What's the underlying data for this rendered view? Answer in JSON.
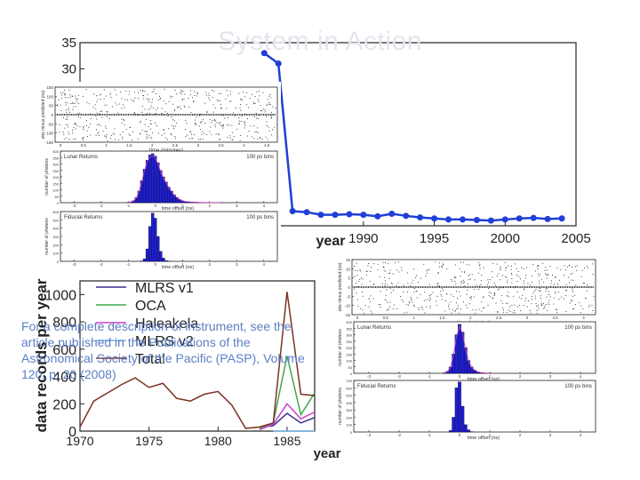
{
  "slide": {
    "title": "System in Action",
    "caption": "For a complete description of instrument, see the article published in the Publications of the Astronomical Society of the Pacific (PASP), Volume 120, p. 20 (2008)"
  },
  "chart_data": [
    {
      "id": "precision",
      "type": "line",
      "x": [
        1983,
        1984,
        1985,
        1986,
        1987,
        1988,
        1989,
        1990,
        1991,
        1992,
        1993,
        1994,
        1995,
        1996,
        1997,
        1998,
        1999,
        2000,
        2001,
        2002,
        2003,
        2004
      ],
      "y": [
        33,
        31,
        2.8,
        2.6,
        2.1,
        2.1,
        2.2,
        2.1,
        1.8,
        2.3,
        1.9,
        1.6,
        1.4,
        1.2,
        1.2,
        1.1,
        1.0,
        1.2,
        1.4,
        1.5,
        1.3,
        1.4
      ],
      "xlim": [
        1970,
        2005
      ],
      "ylim": [
        0,
        35
      ],
      "xticks": [
        1990,
        1995,
        2000,
        2005
      ],
      "yticks": [
        35,
        30
      ],
      "xlabel": "year",
      "color": "#1f3fd6"
    },
    {
      "id": "records",
      "type": "line",
      "xlim": [
        1970,
        1987
      ],
      "ylim": [
        0,
        1100
      ],
      "xticks": [
        1970,
        1975,
        1980,
        1985
      ],
      "yticks": [
        0,
        200,
        400,
        600,
        800,
        1000
      ],
      "xlabel": "year",
      "ylabel": "data records per year",
      "legend_position": "top-right",
      "series": [
        {
          "name": "MLRS v1",
          "color": "#3b2f8f",
          "x": [
            1983,
            1984,
            1985,
            1986,
            1987
          ],
          "y": [
            30,
            40,
            130,
            60,
            100
          ]
        },
        {
          "name": "OCA",
          "color": "#3fa84a",
          "x": [
            1983,
            1984,
            1985,
            1986,
            1987
          ],
          "y": [
            20,
            60,
            550,
            120,
            280
          ]
        },
        {
          "name": "Haleakela",
          "color": "#cc3fcc",
          "x": [
            1983,
            1984,
            1985,
            1986,
            1987
          ],
          "y": [
            10,
            50,
            200,
            90,
            140
          ]
        },
        {
          "name": "MLRS v2",
          "color": "#6fb0e0",
          "x": [
            1984,
            1985,
            1986,
            1987
          ],
          "y": [
            0,
            0,
            0,
            0
          ]
        },
        {
          "name": "Total",
          "color": "#7a3322",
          "x": [
            1970,
            1971,
            1972,
            1973,
            1974,
            1975,
            1976,
            1977,
            1978,
            1979,
            1980,
            1981,
            1982,
            1983,
            1984,
            1985,
            1986,
            1987
          ],
          "y": [
            30,
            220,
            280,
            340,
            390,
            320,
            350,
            240,
            220,
            270,
            290,
            190,
            20,
            30,
            60,
            1020,
            270,
            260
          ]
        }
      ]
    },
    {
      "id": "apollo-top-raw",
      "type": "scatter",
      "xlabel": "time (minutes)",
      "ylabel": "obs minus predicted (ns)",
      "xticks": [
        0,
        0.5,
        1,
        1.5,
        2,
        2.5,
        3,
        3.5,
        4,
        4.5
      ],
      "yticks": [
        150,
        100,
        50,
        0,
        -50,
        -100,
        -150
      ],
      "ylim": [
        -150,
        150
      ]
    },
    {
      "id": "apollo-top-lunar",
      "type": "bar",
      "panel_label": "Lunar Returns",
      "bin_label": "100 ps bins",
      "xlabel": "time offset (ns)",
      "ylabel": "number of photons",
      "yticks": [
        400,
        350,
        300,
        250,
        200,
        150,
        100,
        50,
        0
      ],
      "ylim": [
        0,
        400
      ],
      "xticks": [
        -3,
        -2,
        -1,
        0,
        1,
        2,
        3,
        4
      ],
      "xlim": [
        -3.5,
        4.5
      ],
      "x": [
        -1.0,
        -0.9,
        -0.8,
        -0.7,
        -0.6,
        -0.5,
        -0.4,
        -0.3,
        -0.2,
        -0.1,
        0,
        0.1,
        0.2,
        0.3,
        0.4,
        0.5,
        0.6,
        0.7,
        0.8,
        0.9,
        1.0,
        1.1,
        1.2,
        1.3,
        1.4,
        1.5,
        1.6,
        1.8,
        2.0,
        2.4
      ],
      "values": [
        2,
        6,
        15,
        40,
        90,
        170,
        260,
        330,
        370,
        380,
        360,
        310,
        250,
        200,
        160,
        120,
        90,
        60,
        40,
        25,
        15,
        10,
        8,
        6,
        5,
        4,
        3,
        2,
        2,
        1
      ]
    },
    {
      "id": "apollo-top-fiducial",
      "type": "bar",
      "panel_label": "Fiducial Returns",
      "bin_label": "100 ps bins",
      "xlabel": "time offset (ns)",
      "ylabel": "number of photons",
      "yticks": [
        600,
        500,
        400,
        300,
        200,
        100,
        0
      ],
      "ylim": [
        0,
        600
      ],
      "xticks": [
        -3,
        -2,
        -1,
        0,
        1,
        2,
        3,
        4
      ],
      "xlim": [
        -3.5,
        4.5
      ],
      "x": [
        -0.5,
        -0.4,
        -0.3,
        -0.2,
        -0.1,
        0,
        0.1,
        0.2,
        0.3,
        0.4,
        0.5
      ],
      "values": [
        5,
        30,
        150,
        420,
        580,
        520,
        300,
        120,
        40,
        10,
        3
      ]
    },
    {
      "id": "apollo-bottom-raw",
      "type": "scatter",
      "xlabel": "time (minutes)",
      "ylabel": "obs minus predicted (ns)",
      "xticks": [
        0,
        0.5,
        1,
        1.5,
        2,
        2.5,
        3,
        3.5,
        4
      ],
      "yticks": [
        15,
        10,
        5,
        0,
        -5,
        -10,
        -15
      ],
      "ylim": [
        -15,
        15
      ]
    },
    {
      "id": "apollo-bottom-lunar",
      "type": "bar",
      "panel_label": "Lunar Returns",
      "bin_label": "100 ps bins",
      "xlabel": "time offset (ns)",
      "ylabel": "number of photons",
      "yticks": [
        400,
        350,
        300,
        250,
        200,
        150,
        100,
        50,
        0
      ],
      "ylim": [
        0,
        400
      ],
      "xticks": [
        -3,
        -2,
        -1,
        0,
        1,
        2,
        3,
        4
      ],
      "xlim": [
        -3.5,
        4.5
      ],
      "x": [
        -0.5,
        -0.4,
        -0.3,
        -0.2,
        -0.1,
        0,
        0.1,
        0.2,
        0.3,
        0.4,
        0.5,
        0.6,
        0.7,
        0.8,
        1.0
      ],
      "values": [
        4,
        15,
        50,
        150,
        300,
        380,
        320,
        200,
        100,
        50,
        25,
        12,
        6,
        4,
        2
      ]
    },
    {
      "id": "apollo-bottom-fiducial",
      "type": "bar",
      "panel_label": "Fiducial Returns",
      "bin_label": "100 ps bins",
      "xlabel": "time offset (ns)",
      "ylabel": "number of photons",
      "yticks": [
        700,
        600,
        500,
        400,
        300,
        200,
        100,
        0
      ],
      "ylim": [
        0,
        700
      ],
      "xticks": [
        -3,
        -2,
        -1,
        0,
        1,
        2,
        3,
        4
      ],
      "xlim": [
        -3.5,
        4.5
      ],
      "x": [
        -0.3,
        -0.2,
        -0.1,
        0,
        0.1,
        0.2,
        0.3,
        0.4
      ],
      "values": [
        20,
        200,
        600,
        680,
        350,
        100,
        30,
        5
      ]
    }
  ]
}
